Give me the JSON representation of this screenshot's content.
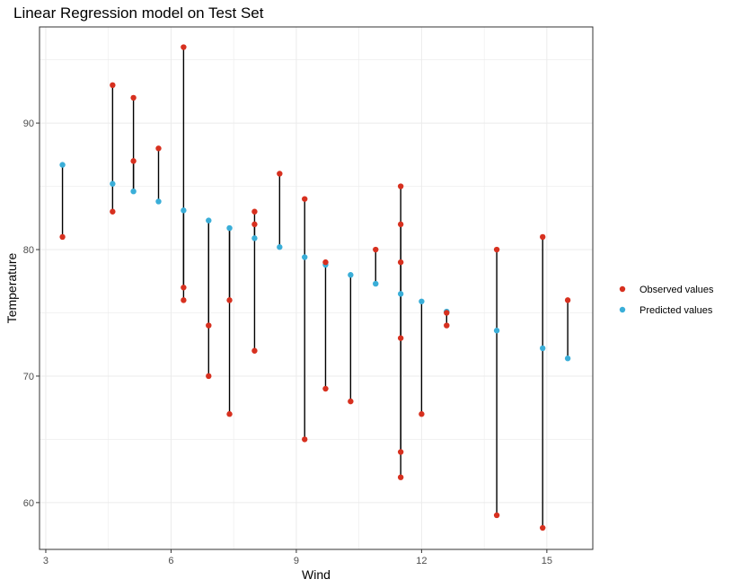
{
  "chart_data": {
    "type": "scatter",
    "title": "Linear Regression model on Test Set",
    "xlabel": "Wind",
    "ylabel": "Temperature",
    "xlim": [
      2.85,
      16.1
    ],
    "ylim": [
      56.3,
      97.6
    ],
    "xticks": [
      3,
      6,
      9,
      12,
      15
    ],
    "yticks": [
      60,
      70,
      80,
      90
    ],
    "grid": true,
    "legend": "right",
    "colors": {
      "observed": "#d7301f",
      "predicted": "#3aaed8",
      "segment": "#000000"
    },
    "series": [
      {
        "name": "Observed values",
        "points": [
          [
            3.4,
            81
          ],
          [
            4.6,
            93
          ],
          [
            4.6,
            83
          ],
          [
            5.1,
            92
          ],
          [
            5.1,
            87
          ],
          [
            5.7,
            88
          ],
          [
            6.3,
            96
          ],
          [
            6.3,
            77
          ],
          [
            6.3,
            76
          ],
          [
            6.9,
            74
          ],
          [
            6.9,
            70
          ],
          [
            7.4,
            76
          ],
          [
            7.4,
            67
          ],
          [
            8.0,
            83
          ],
          [
            8.0,
            82
          ],
          [
            8.0,
            72
          ],
          [
            8.6,
            86
          ],
          [
            9.2,
            84
          ],
          [
            9.2,
            65
          ],
          [
            9.7,
            79
          ],
          [
            9.7,
            69
          ],
          [
            10.3,
            68
          ],
          [
            10.9,
            80
          ],
          [
            11.5,
            85
          ],
          [
            11.5,
            82
          ],
          [
            11.5,
            79
          ],
          [
            11.5,
            73
          ],
          [
            11.5,
            64
          ],
          [
            11.5,
            62
          ],
          [
            12.0,
            67
          ],
          [
            12.6,
            75
          ],
          [
            12.6,
            74
          ],
          [
            13.8,
            80
          ],
          [
            13.8,
            59
          ],
          [
            14.9,
            81
          ],
          [
            14.9,
            58
          ],
          [
            15.5,
            76
          ]
        ]
      },
      {
        "name": "Predicted values",
        "points": [
          [
            3.4,
            86.7
          ],
          [
            4.6,
            85.2
          ],
          [
            5.1,
            84.6
          ],
          [
            5.7,
            83.8
          ],
          [
            6.3,
            83.1
          ],
          [
            6.9,
            82.3
          ],
          [
            7.4,
            81.7
          ],
          [
            8.0,
            80.9
          ],
          [
            8.6,
            80.2
          ],
          [
            9.2,
            79.4
          ],
          [
            9.7,
            78.8
          ],
          [
            10.3,
            78.0
          ],
          [
            10.9,
            77.3
          ],
          [
            11.5,
            76.5
          ],
          [
            12.0,
            75.9
          ],
          [
            12.6,
            75.1
          ],
          [
            13.8,
            73.6
          ],
          [
            14.9,
            72.2
          ],
          [
            15.5,
            71.4
          ]
        ]
      }
    ]
  }
}
